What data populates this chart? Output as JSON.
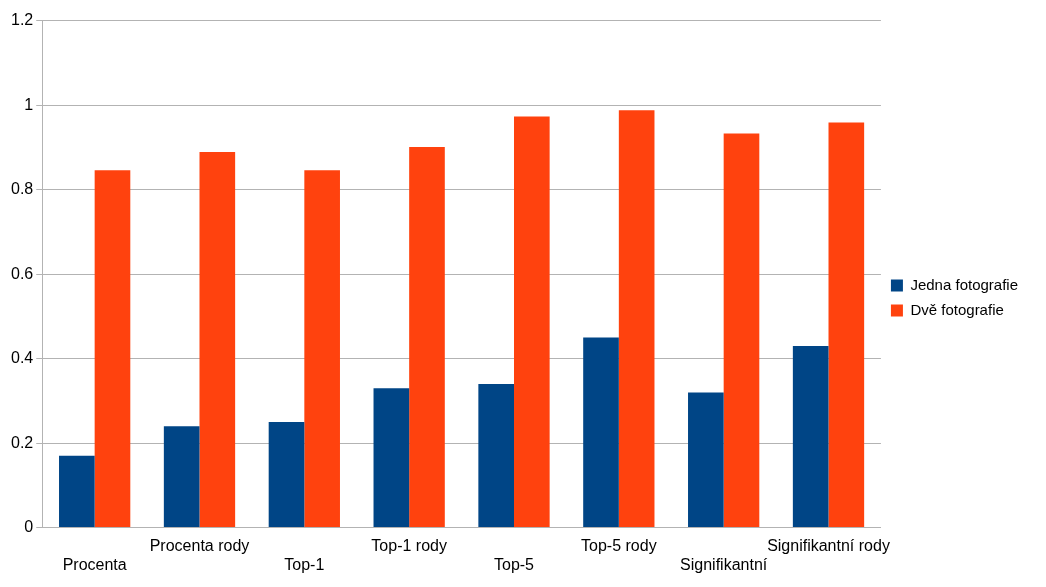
{
  "chart_data": {
    "type": "bar",
    "categories": [
      "Procenta",
      "Procenta rody",
      "Top-1",
      "Top-1 rody",
      "Top-5",
      "Top-5 rody",
      "Signifikantní",
      "Signifikantní rody"
    ],
    "series": [
      {
        "name": "Jedna fotografie",
        "color": "#004586",
        "values": [
          0.17,
          0.24,
          0.25,
          0.33,
          0.34,
          0.45,
          0.32,
          0.43
        ]
      },
      {
        "name": "Dvě fotografie",
        "color": "#ff420e",
        "values": [
          0.846,
          0.889,
          0.846,
          0.901,
          0.973,
          0.988,
          0.933,
          0.959
        ]
      }
    ],
    "ylim": [
      0,
      1.2
    ],
    "yticks": [
      0,
      0.2,
      0.4,
      0.6,
      0.8,
      1,
      1.2
    ],
    "grid": "y",
    "legend": "right"
  }
}
